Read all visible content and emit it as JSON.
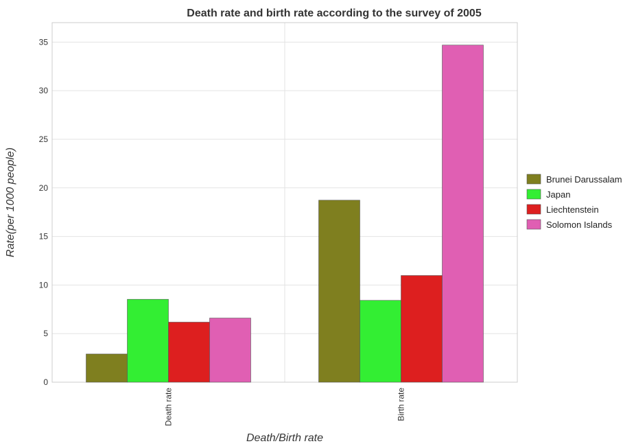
{
  "chart_data": {
    "type": "bar",
    "title": "Death rate and birth rate according to the survey of 2005",
    "xlabel": "Death/Birth rate",
    "ylabel": "Rate(per 1000 people)",
    "categories": [
      "Death rate",
      "Birth rate"
    ],
    "series": [
      {
        "name": "Brunei Darussalam",
        "color": "#7f7f1f",
        "values": [
          2.9,
          18.73
        ]
      },
      {
        "name": "Japan",
        "color": "#33ee33",
        "values": [
          8.53,
          8.42
        ]
      },
      {
        "name": "Liechtenstein",
        "color": "#dd1f1f",
        "values": [
          6.18,
          10.98
        ]
      },
      {
        "name": "Solomon Islands",
        "color": "#e05fb3",
        "values": [
          6.6,
          34.69
        ]
      }
    ],
    "ylim": [
      0,
      37
    ],
    "yticks": [
      0,
      5,
      10,
      15,
      20,
      25,
      30,
      35
    ],
    "grid": true,
    "legend_position": "right"
  }
}
